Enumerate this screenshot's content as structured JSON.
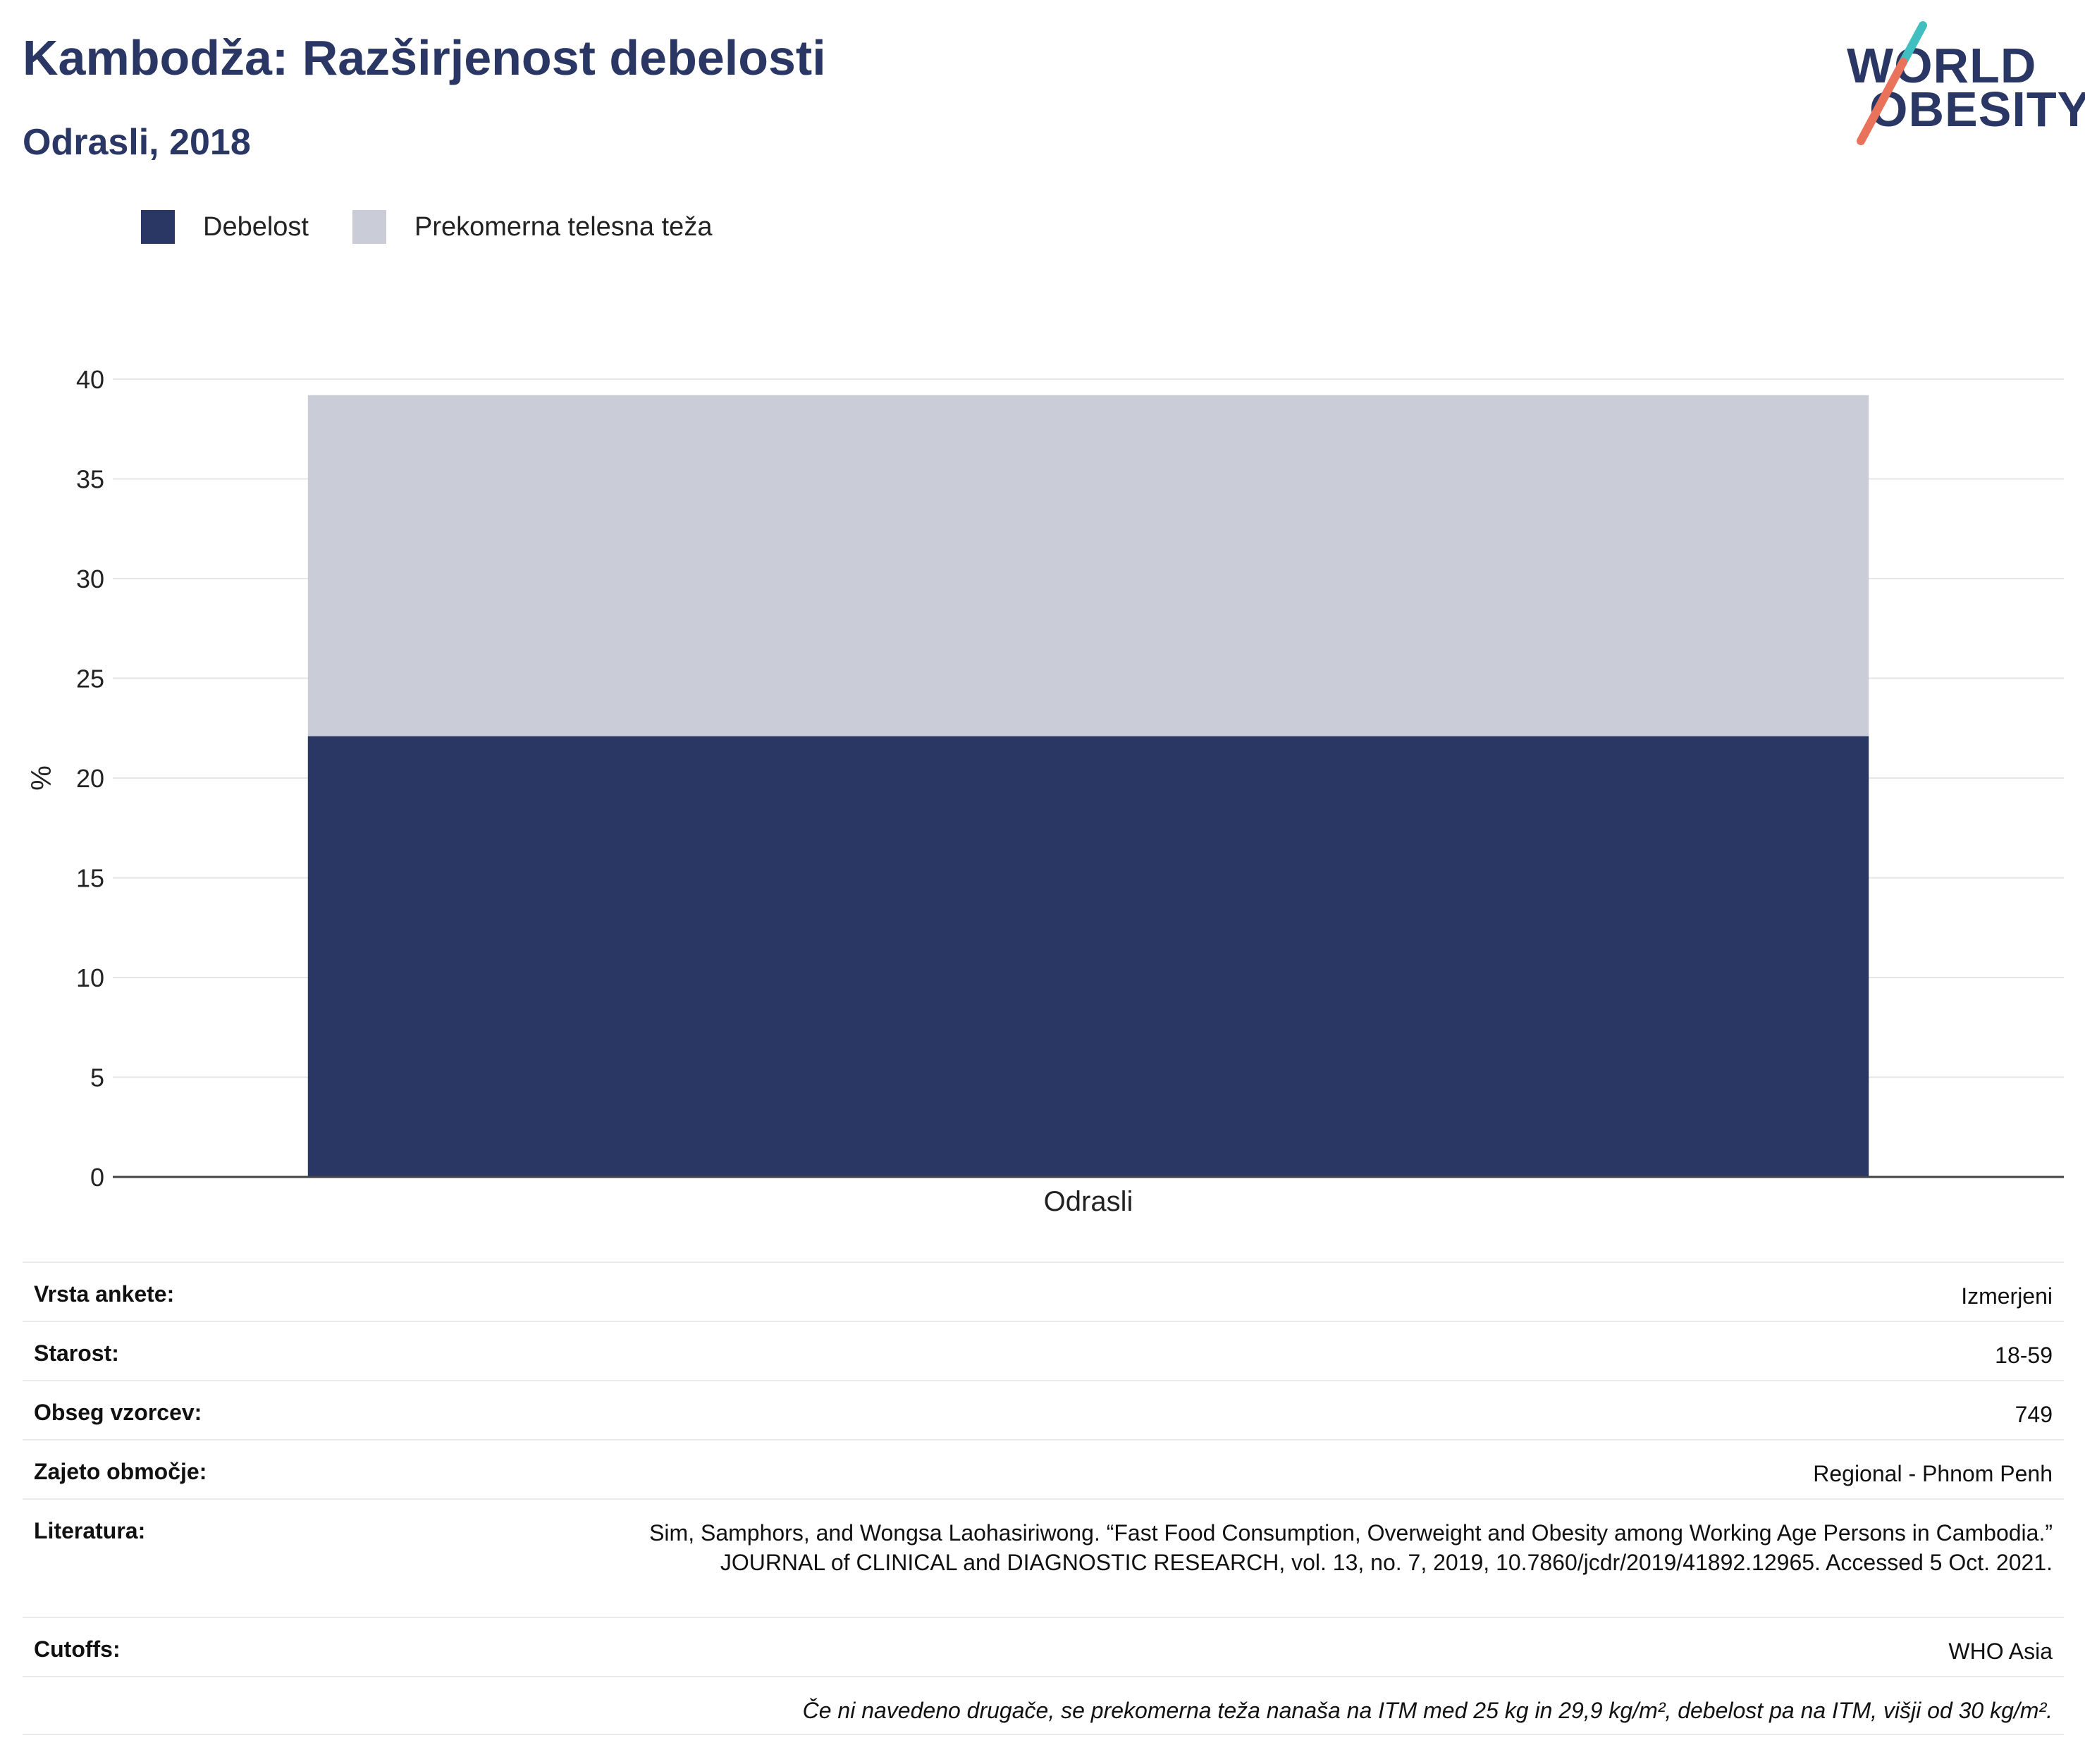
{
  "header": {
    "title": "Kambodža: Razširjenost debelosti",
    "subtitle": "Odrasli, 2018"
  },
  "logo": {
    "line1": "WORLD",
    "line2": "OBESITY",
    "text_color": "#2a3663",
    "slash_color_top": "#3fbfbf",
    "slash_color_bottom": "#e8735a"
  },
  "legend": [
    {
      "label": "Debelost",
      "color": "#2a3663"
    },
    {
      "label": "Prekomerna telesna teža",
      "color": "#cacdd8"
    }
  ],
  "chart_data": {
    "type": "bar",
    "stacked": true,
    "categories": [
      "Odrasli"
    ],
    "series": [
      {
        "name": "Debelost",
        "values": [
          22.1
        ],
        "color": "#2a3663"
      },
      {
        "name": "Prekomerna telesna teža",
        "values": [
          17.1
        ],
        "color": "#cacdd8"
      }
    ],
    "ylabel": "%",
    "ylim": [
      0,
      40
    ],
    "yticks": [
      0,
      5,
      10,
      15,
      20,
      25,
      30,
      35,
      40
    ],
    "grid": true,
    "legend_position": "top-left"
  },
  "info": [
    {
      "label": "Vrsta ankete:",
      "value": "Izmerjeni"
    },
    {
      "label": "Starost:",
      "value": "18-59"
    },
    {
      "label": "Obseg vzorcev:",
      "value": "749"
    },
    {
      "label": "Zajeto območje:",
      "value": "Regional - Phnom Penh"
    },
    {
      "label": "Literatura:",
      "value": "Sim, Samphors, and Wongsa Laohasiriwong. “Fast Food Consumption, Overweight and Obesity among Working Age Persons in Cambodia.” JOURNAL of CLINICAL and DIAGNOSTIC RESEARCH, vol. 13, no. 7, 2019, 10.7860/jcdr/2019/41892.12965. Accessed 5 Oct. 2021."
    },
    {
      "label": "Cutoffs:",
      "value": "WHO Asia"
    }
  ],
  "note": "Če ni navedeno drugače, se prekomerna teža nanaša na ITM med 25 kg in 29,9 kg/m², debelost pa na ITM, višji od 30 kg/m²."
}
